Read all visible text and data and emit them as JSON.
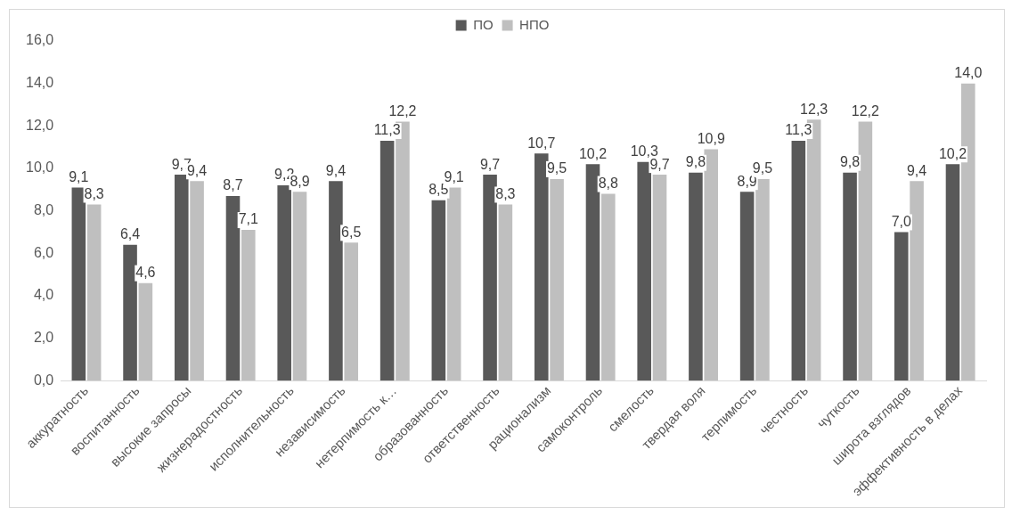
{
  "chart_data": {
    "type": "bar",
    "categories": [
      "аккуратность",
      "воспитанность",
      "высокие запросы",
      "жизнерадостность",
      "исполнительность",
      "независимость",
      "нетерпимость к…",
      "образованность",
      "ответственность",
      "рационализм",
      "самоконтроль",
      "смелость",
      "твердая воля",
      "терпимость",
      "честность",
      "чуткость",
      "широта взглядов",
      "эффективность в делах"
    ],
    "series": [
      {
        "name": "ПО",
        "color": "#595959",
        "values": [
          9.1,
          6.4,
          9.7,
          8.7,
          9.2,
          9.4,
          11.3,
          8.5,
          9.7,
          10.7,
          10.2,
          10.3,
          9.8,
          8.9,
          11.3,
          9.8,
          7.0,
          10.2
        ],
        "value_labels": [
          "9,1",
          "6,4",
          "9,7",
          "8,7",
          "9,2",
          "9,4",
          "11,3",
          "8,5",
          "9,7",
          "10,7",
          "10,2",
          "10,3",
          "9,8",
          "8,9",
          "11,3",
          "9,8",
          "7,0",
          "10,2"
        ]
      },
      {
        "name": "НПО",
        "color": "#bfbfbf",
        "values": [
          8.3,
          4.6,
          9.4,
          7.1,
          8.9,
          6.5,
          12.2,
          9.1,
          8.3,
          9.5,
          8.8,
          9.7,
          10.9,
          9.5,
          12.3,
          12.2,
          9.4,
          14.0
        ],
        "value_labels": [
          "8,3",
          "4,6",
          "9,4",
          "7,1",
          "8,9",
          "6,5",
          "12,2",
          "9,1",
          "8,3",
          "9,5",
          "8,8",
          "9,7",
          "10,9",
          "9,5",
          "12,3",
          "12,2",
          "9,4",
          "14,0"
        ]
      }
    ],
    "ylim": [
      0,
      16
    ],
    "yticks": [
      {
        "value": 0,
        "label": "0,0"
      },
      {
        "value": 2,
        "label": "2,0"
      },
      {
        "value": 4,
        "label": "4,0"
      },
      {
        "value": 6,
        "label": "6,0"
      },
      {
        "value": 8,
        "label": "8,0"
      },
      {
        "value": 10,
        "label": "10,0"
      },
      {
        "value": 12,
        "label": "12,0"
      },
      {
        "value": 14,
        "label": "14,0"
      },
      {
        "value": 16,
        "label": "16,0"
      }
    ],
    "grid": false,
    "legend": "top"
  }
}
